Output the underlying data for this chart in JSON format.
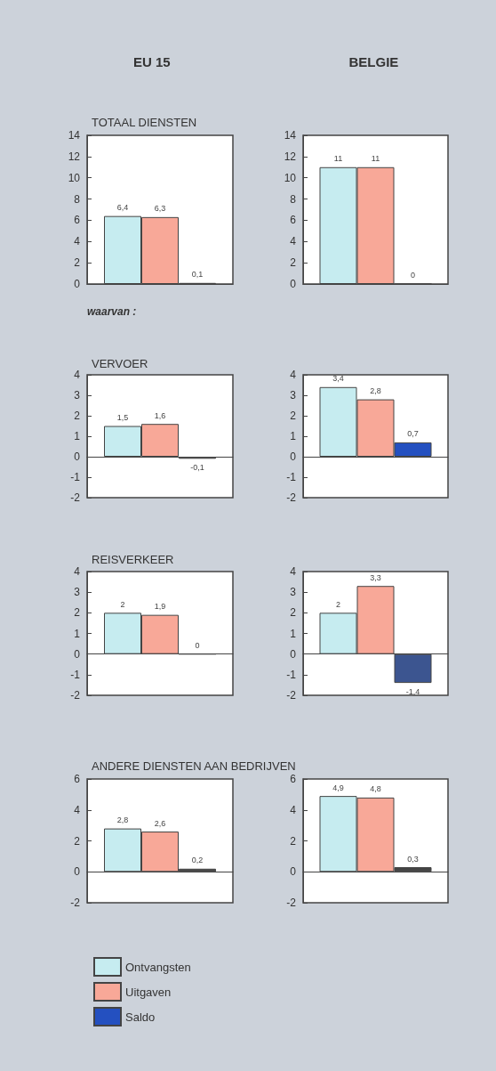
{
  "chart_data": [
    {
      "type": "bar",
      "title": "TOTAAL DIENSTEN",
      "annotations": [
        "EU 15"
      ],
      "categories": [
        null
      ],
      "ylim": [
        0,
        14
      ],
      "yticks": [
        0,
        2,
        4,
        6,
        8,
        10,
        12,
        14
      ],
      "series": [
        {
          "color": "#c6ecf0",
          "values": [
            6.4
          ],
          "value_labels": [
            "6,4"
          ]
        },
        {
          "color": "#f8a898",
          "values": [
            6.3
          ],
          "value_labels": [
            "6,3"
          ]
        },
        {
          "color": "#444444",
          "values": [
            0.1
          ],
          "value_labels": [
            "0,1"
          ]
        }
      ]
    },
    {
      "type": "bar",
      "annotations": [
        "BELGIE"
      ],
      "categories": [
        null
      ],
      "ylim": [
        0,
        14
      ],
      "yticks": [
        0,
        2,
        4,
        6,
        8,
        10,
        12,
        14
      ],
      "series": [
        {
          "color": "#c6ecf0",
          "values": [
            11
          ],
          "value_labels": [
            "11"
          ]
        },
        {
          "color": "#f8a898",
          "values": [
            11
          ],
          "value_labels": [
            "11"
          ]
        },
        {
          "color": "#444444",
          "values": [
            0
          ],
          "value_labels": [
            "0"
          ]
        }
      ]
    },
    {
      "type": "bar",
      "title": "VERVOER",
      "annotations": [
        "waarvan :"
      ],
      "categories": [
        null
      ],
      "ylim": [
        -2,
        4
      ],
      "yticks": [
        -2,
        -1,
        0,
        1,
        2,
        3,
        4
      ],
      "series": [
        {
          "color": "#c6ecf0",
          "values": [
            1.5
          ],
          "value_labels": [
            "1,5"
          ]
        },
        {
          "color": "#f8a898",
          "values": [
            1.6
          ],
          "value_labels": [
            "1,6"
          ]
        },
        {
          "color": "#444444",
          "values": [
            -0.1
          ],
          "value_labels": [
            "-0,1"
          ]
        }
      ]
    },
    {
      "type": "bar",
      "legend": "bottom left",
      "categories": [
        null
      ],
      "ylim": [
        -2,
        4
      ],
      "yticks": [
        -2,
        -1,
        0,
        1,
        2,
        3,
        4
      ],
      "series": [
        {
          "name": "Ontvangsten",
          "color": "#c6ecf0",
          "values": [
            3.4
          ],
          "value_labels": [
            "3,4"
          ]
        },
        {
          "name": "Uitgaven",
          "color": "#f8a898",
          "values": [
            2.8
          ],
          "value_labels": [
            "2,8"
          ]
        },
        {
          "name": "Saldo",
          "color": "#2450c0",
          "values": [
            0.7
          ],
          "value_labels": [
            "0,7"
          ]
        }
      ]
    },
    {
      "type": "bar",
      "title": "REISVERKEER",
      "categories": [
        null
      ],
      "ylim": [
        -2,
        4
      ],
      "yticks": [
        -2,
        -1,
        0,
        1,
        2,
        3,
        4
      ],
      "series": [
        {
          "color": "#c6ecf0",
          "values": [
            2
          ],
          "value_labels": [
            "2"
          ]
        },
        {
          "color": "#f8a898",
          "values": [
            1.9
          ],
          "value_labels": [
            "1,9"
          ]
        },
        {
          "color": "#444444",
          "values": [
            0
          ],
          "value_labels": [
            "0"
          ]
        }
      ]
    },
    {
      "type": "bar",
      "categories": [
        null
      ],
      "ylim": [
        -2,
        4
      ],
      "yticks": [
        -2,
        -1,
        0,
        1,
        2,
        3,
        4
      ],
      "series": [
        {
          "color": "#c6ecf0",
          "values": [
            2
          ],
          "value_labels": [
            "2"
          ]
        },
        {
          "color": "#f8a898",
          "values": [
            3.3
          ],
          "value_labels": [
            "3,3"
          ]
        },
        {
          "color": "#3c5590",
          "values": [
            -1.4
          ],
          "value_labels": [
            "-1,4"
          ]
        }
      ]
    },
    {
      "type": "bar",
      "title": "ANDERE DIENSTEN AAN BEDRIJVEN",
      "categories": [
        null
      ],
      "ylim": [
        -2,
        6
      ],
      "yticks": [
        -2,
        0,
        2,
        4,
        6
      ],
      "series": [
        {
          "color": "#c6ecf0",
          "values": [
            2.8
          ],
          "value_labels": [
            "2,8"
          ]
        },
        {
          "color": "#f8a898",
          "values": [
            2.6
          ],
          "value_labels": [
            "2,6"
          ]
        },
        {
          "color": "#444444",
          "values": [
            0.2
          ],
          "value_labels": [
            "0,2"
          ]
        }
      ]
    },
    {
      "type": "bar",
      "categories": [
        null
      ],
      "ylim": [
        -2,
        6
      ],
      "yticks": [
        -2,
        0,
        2,
        4,
        6
      ],
      "series": [
        {
          "color": "#c6ecf0",
          "values": [
            4.9
          ],
          "value_labels": [
            "4,9"
          ]
        },
        {
          "color": "#f8a898",
          "values": [
            4.8
          ],
          "value_labels": [
            "4,8"
          ]
        },
        {
          "color": "#444444",
          "values": [
            0.3
          ],
          "value_labels": [
            "0,3"
          ]
        }
      ]
    }
  ]
}
